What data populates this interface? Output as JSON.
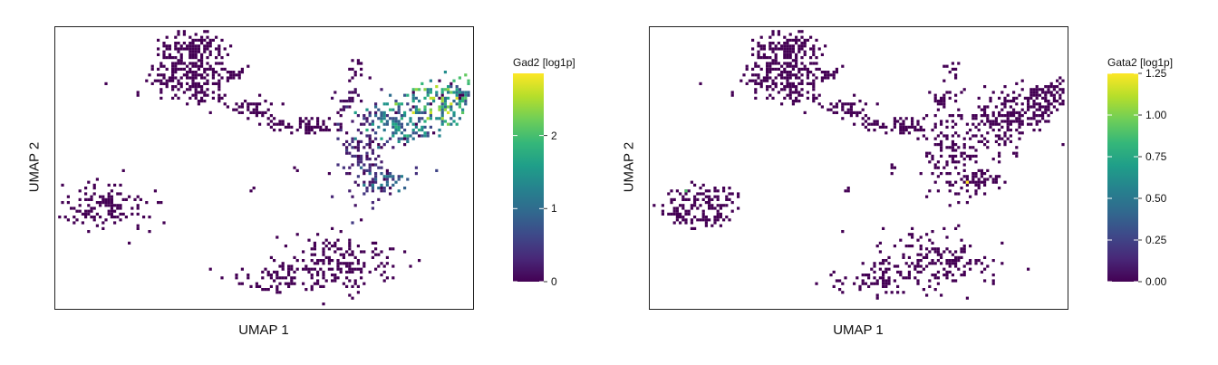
{
  "chart_data": [
    {
      "type": "scatter",
      "subtype": "binned-embedding",
      "title": "",
      "xlabel": "UMAP 1",
      "ylabel": "UMAP 2",
      "grid": false,
      "axis_ticks_shown": false,
      "colormap": "viridis",
      "colorbar": {
        "title": "Gad2 [log1p]",
        "range": [
          0,
          2.85
        ],
        "ticks": [
          0,
          1,
          2
        ],
        "tick_labels": [
          "0",
          "1",
          "2"
        ],
        "placement": "right"
      },
      "clusters": [
        {
          "cx": 0.32,
          "cy": 0.17,
          "sx": 0.05,
          "sy": 0.055,
          "n": 230,
          "expr": 0.0
        },
        {
          "cx": 0.33,
          "cy": 0.07,
          "sx": 0.035,
          "sy": 0.03,
          "n": 120,
          "expr": 0.0
        },
        {
          "cx": 0.42,
          "cy": 0.16,
          "sx": 0.015,
          "sy": 0.01,
          "n": 20,
          "expr": 0.0
        },
        {
          "cx": 0.46,
          "cy": 0.28,
          "sx": 0.03,
          "sy": 0.015,
          "n": 45,
          "expr": 0.0
        },
        {
          "cx": 0.53,
          "cy": 0.34,
          "sx": 0.02,
          "sy": 0.012,
          "n": 25,
          "expr": 0.0
        },
        {
          "cx": 0.62,
          "cy": 0.34,
          "sx": 0.035,
          "sy": 0.015,
          "n": 55,
          "expr": 0.0
        },
        {
          "cx": 0.7,
          "cy": 0.25,
          "sx": 0.015,
          "sy": 0.025,
          "n": 25,
          "expr": 0.1
        },
        {
          "cx": 0.72,
          "cy": 0.15,
          "sx": 0.01,
          "sy": 0.02,
          "n": 15,
          "expr": 0.0
        },
        {
          "cx": 0.73,
          "cy": 0.46,
          "sx": 0.035,
          "sy": 0.08,
          "n": 140,
          "expr": 0.35
        },
        {
          "cx": 0.79,
          "cy": 0.53,
          "sx": 0.03,
          "sy": 0.02,
          "n": 40,
          "expr": 0.9
        },
        {
          "cx": 0.83,
          "cy": 0.33,
          "sx": 0.05,
          "sy": 0.05,
          "n": 150,
          "expr": 1.3
        },
        {
          "cx": 0.92,
          "cy": 0.27,
          "sx": 0.04,
          "sy": 0.04,
          "n": 120,
          "expr": 1.8
        },
        {
          "cx": 0.97,
          "cy": 0.23,
          "sx": 0.02,
          "sy": 0.03,
          "n": 45,
          "expr": 1.5
        },
        {
          "cx": 0.13,
          "cy": 0.63,
          "sx": 0.05,
          "sy": 0.04,
          "n": 130,
          "expr": 0.0
        },
        {
          "cx": 0.07,
          "cy": 0.66,
          "sx": 0.02,
          "sy": 0.015,
          "n": 25,
          "expr": 0.0
        },
        {
          "cx": 0.68,
          "cy": 0.83,
          "sx": 0.07,
          "sy": 0.05,
          "n": 180,
          "expr": 0.0
        },
        {
          "cx": 0.53,
          "cy": 0.89,
          "sx": 0.06,
          "sy": 0.025,
          "n": 70,
          "expr": 0.0
        },
        {
          "cx": 0.47,
          "cy": 0.57,
          "sx": 0.005,
          "sy": 0.005,
          "n": 3,
          "expr": 0.0
        },
        {
          "cx": 0.58,
          "cy": 0.5,
          "sx": 0.005,
          "sy": 0.01,
          "n": 5,
          "expr": 0.0
        }
      ]
    },
    {
      "type": "scatter",
      "subtype": "binned-embedding",
      "title": "",
      "xlabel": "UMAP 1",
      "ylabel": "UMAP 2",
      "grid": false,
      "axis_ticks_shown": false,
      "colormap": "viridis",
      "colorbar": {
        "title": "Gata2 [log1p]",
        "range": [
          0,
          1.25
        ],
        "ticks": [
          0,
          0.25,
          0.5,
          0.75,
          1.0,
          1.25
        ],
        "tick_labels": [
          "0.00",
          "0.25",
          "0.50",
          "0.75",
          "1.00",
          "1.25"
        ],
        "placement": "right"
      },
      "clusters": [
        {
          "cx": 0.32,
          "cy": 0.17,
          "sx": 0.05,
          "sy": 0.055,
          "n": 230,
          "expr": 0.0
        },
        {
          "cx": 0.33,
          "cy": 0.07,
          "sx": 0.035,
          "sy": 0.03,
          "n": 120,
          "expr": 0.0
        },
        {
          "cx": 0.42,
          "cy": 0.16,
          "sx": 0.015,
          "sy": 0.01,
          "n": 20,
          "expr": 0.0
        },
        {
          "cx": 0.46,
          "cy": 0.28,
          "sx": 0.03,
          "sy": 0.015,
          "n": 45,
          "expr": 0.0
        },
        {
          "cx": 0.53,
          "cy": 0.34,
          "sx": 0.02,
          "sy": 0.012,
          "n": 25,
          "expr": 0.0
        },
        {
          "cx": 0.62,
          "cy": 0.34,
          "sx": 0.035,
          "sy": 0.015,
          "n": 55,
          "expr": 0.0
        },
        {
          "cx": 0.7,
          "cy": 0.25,
          "sx": 0.015,
          "sy": 0.025,
          "n": 25,
          "expr": 0.0
        },
        {
          "cx": 0.72,
          "cy": 0.15,
          "sx": 0.01,
          "sy": 0.02,
          "n": 15,
          "expr": 0.0
        },
        {
          "cx": 0.73,
          "cy": 0.46,
          "sx": 0.035,
          "sy": 0.08,
          "n": 140,
          "expr": 0.0
        },
        {
          "cx": 0.79,
          "cy": 0.53,
          "sx": 0.03,
          "sy": 0.02,
          "n": 40,
          "expr": 0.0
        },
        {
          "cx": 0.83,
          "cy": 0.33,
          "sx": 0.05,
          "sy": 0.05,
          "n": 150,
          "expr": 0.0
        },
        {
          "cx": 0.92,
          "cy": 0.27,
          "sx": 0.04,
          "sy": 0.04,
          "n": 120,
          "expr": 0.0
        },
        {
          "cx": 0.97,
          "cy": 0.23,
          "sx": 0.02,
          "sy": 0.03,
          "n": 45,
          "expr": 0.0
        },
        {
          "cx": 0.13,
          "cy": 0.63,
          "sx": 0.05,
          "sy": 0.04,
          "n": 130,
          "expr": 0.0
        },
        {
          "cx": 0.07,
          "cy": 0.66,
          "sx": 0.02,
          "sy": 0.015,
          "n": 25,
          "expr": 0.0
        },
        {
          "cx": 0.68,
          "cy": 0.83,
          "sx": 0.07,
          "sy": 0.05,
          "n": 180,
          "expr": 0.0
        },
        {
          "cx": 0.53,
          "cy": 0.89,
          "sx": 0.06,
          "sy": 0.025,
          "n": 70,
          "expr": 0.0
        },
        {
          "cx": 0.47,
          "cy": 0.57,
          "sx": 0.005,
          "sy": 0.005,
          "n": 3,
          "expr": 0.0
        },
        {
          "cx": 0.58,
          "cy": 0.5,
          "sx": 0.005,
          "sy": 0.01,
          "n": 5,
          "expr": 0.0
        }
      ],
      "highlights": [
        {
          "x": 0.76,
          "y": 0.55,
          "expr": 1.25
        },
        {
          "x": 0.08,
          "y": 0.58,
          "expr": 0.9
        }
      ]
    }
  ]
}
